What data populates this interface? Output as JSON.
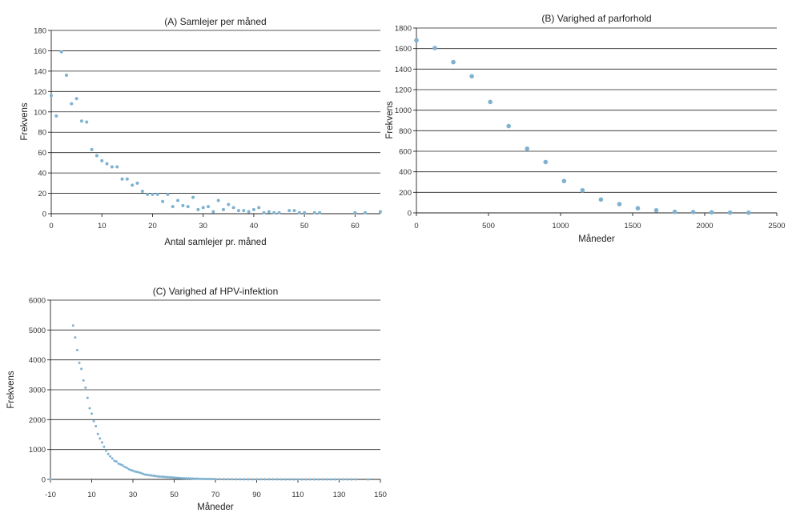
{
  "chart_data": [
    {
      "type": "scatter",
      "title": "(A) Samlejer per måned",
      "xlabel": "Antal samlejer pr. måned",
      "ylabel": "Frekvens",
      "xlim": [
        0,
        65
      ],
      "ylim": [
        0,
        180
      ],
      "xticks": [
        0,
        10,
        20,
        30,
        40,
        50,
        60
      ],
      "yticks": [
        0,
        20,
        40,
        60,
        80,
        100,
        120,
        140,
        160,
        180
      ],
      "grid": true,
      "color": "#7fb2d0",
      "series": [
        {
          "x": [
            0,
            1,
            2,
            3,
            4,
            5,
            6,
            7,
            8,
            9,
            10,
            11,
            12,
            13,
            14,
            15,
            16,
            17,
            18,
            19,
            20,
            21,
            22,
            23,
            24,
            25,
            26,
            27,
            28,
            29,
            30,
            31,
            32,
            33,
            34,
            35,
            36,
            37,
            38,
            39,
            40,
            41,
            42,
            43,
            44,
            45,
            47,
            48,
            49,
            50,
            52,
            53,
            60,
            62,
            65
          ],
          "y": [
            116,
            96,
            159,
            136,
            108,
            113,
            91,
            90,
            63,
            57,
            52,
            49,
            46,
            46,
            34,
            34,
            28,
            30,
            22,
            19,
            19,
            19,
            12,
            19,
            7,
            13,
            8,
            7,
            16,
            4,
            6,
            7,
            2,
            13,
            4,
            9,
            6,
            3,
            3,
            2,
            4,
            6,
            1,
            2,
            1,
            1,
            3,
            3,
            1,
            1,
            1,
            1,
            1,
            1,
            2
          ]
        }
      ]
    },
    {
      "type": "scatter",
      "title": "(B) Varighed af parforhold",
      "xlabel": "Måneder",
      "ylabel": "Frekvens",
      "xlim": [
        0,
        2500
      ],
      "ylim": [
        0,
        1800
      ],
      "xticks": [
        0,
        500,
        1000,
        1500,
        2000,
        2500
      ],
      "yticks": [
        0,
        200,
        400,
        600,
        800,
        1000,
        1200,
        1400,
        1600,
        1800
      ],
      "grid": true,
      "color": "#7fb2d0",
      "series": [
        {
          "x": [
            0,
            128,
            256,
            384,
            512,
            640,
            768,
            896,
            1024,
            1152,
            1280,
            1408,
            1536,
            1664,
            1792,
            1920,
            2048,
            2176,
            2304
          ],
          "y": [
            1680,
            1605,
            1468,
            1330,
            1080,
            845,
            625,
            495,
            310,
            220,
            130,
            85,
            45,
            25,
            10,
            8,
            5,
            3,
            2
          ]
        }
      ]
    },
    {
      "type": "scatter",
      "title": "(C) Varighed af HPV-infektion",
      "xlabel": "Måneder",
      "ylabel": "Frekvens",
      "xlim": [
        -10,
        150
      ],
      "ylim": [
        0,
        6000
      ],
      "xticks": [
        -10,
        10,
        30,
        50,
        70,
        90,
        110,
        130,
        150
      ],
      "yticks": [
        0,
        1000,
        2000,
        3000,
        4000,
        5000,
        6000
      ],
      "grid": true,
      "color": "#7fb2d0",
      "series": [
        {
          "x": [
            -10,
            1,
            2,
            3,
            4,
            5,
            6,
            7,
            8,
            9,
            10,
            11,
            12,
            13,
            14,
            15,
            16,
            17,
            18,
            19,
            20,
            21,
            22,
            23,
            24,
            25,
            26,
            27,
            28,
            29,
            30,
            31,
            32,
            33,
            34,
            35,
            36,
            37,
            38,
            39,
            40,
            41,
            42,
            43,
            44,
            45,
            46,
            47,
            48,
            49,
            50,
            51,
            52,
            53,
            54,
            55,
            56,
            57,
            58,
            59,
            60,
            61,
            62,
            63,
            64,
            65,
            66,
            67,
            68,
            69,
            70,
            72,
            74,
            76,
            78,
            80,
            82,
            84,
            86,
            88,
            90,
            92,
            94,
            96,
            98,
            100,
            102,
            104,
            106,
            108,
            110,
            112,
            114,
            116,
            118,
            120,
            122,
            124,
            126,
            128,
            130,
            132,
            134,
            136,
            138,
            144
          ],
          "y": [
            0,
            5150,
            4750,
            4330,
            3900,
            3700,
            3310,
            3070,
            2730,
            2380,
            2200,
            1950,
            1780,
            1520,
            1370,
            1240,
            1090,
            960,
            850,
            770,
            700,
            620,
            600,
            530,
            500,
            470,
            420,
            390,
            340,
            310,
            290,
            260,
            250,
            230,
            210,
            180,
            160,
            150,
            140,
            130,
            120,
            110,
            100,
            95,
            90,
            85,
            80,
            75,
            70,
            65,
            60,
            55,
            50,
            45,
            40,
            38,
            35,
            32,
            30,
            28,
            25,
            22,
            20,
            18,
            16,
            15,
            14,
            13,
            12,
            11,
            10,
            9,
            8,
            7,
            6,
            5,
            5,
            4,
            4,
            3,
            3,
            3,
            2,
            2,
            2,
            2,
            1,
            1,
            1,
            1,
            1,
            1,
            1,
            1,
            1,
            1,
            1,
            1,
            1,
            1,
            1,
            1,
            1,
            1,
            1,
            1
          ]
        }
      ]
    }
  ]
}
